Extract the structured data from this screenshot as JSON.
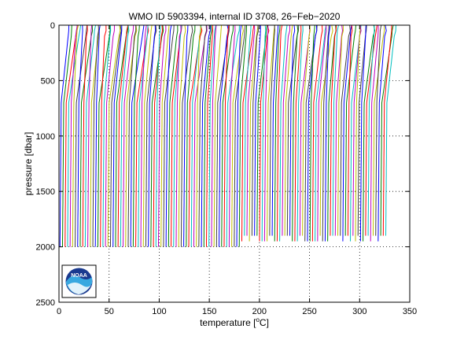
{
  "chart_data": {
    "type": "line",
    "title": "WMO ID 5903394, internal ID 3708, 26−Feb−2020",
    "xlabel_main": "temperature [",
    "xlabel_sup": "o",
    "xlabel_tail": "C]",
    "ylabel": "pressure [dbar]",
    "xlim": [
      0,
      350
    ],
    "ylim": [
      0,
      2500
    ],
    "y_reversed": true,
    "grid": "dotted",
    "xticks": [
      0,
      50,
      100,
      150,
      200,
      250,
      300,
      350
    ],
    "yticks": [
      0,
      500,
      1000,
      1500,
      2000,
      2500
    ],
    "series_colors": [
      "#0000ff",
      "#008000",
      "#ff0000",
      "#00bfbf",
      "#bf00bf",
      "#bfbf00",
      "#404040"
    ],
    "profile_count": 130,
    "profile_offset_start": 0,
    "profile_offset_end": 325,
    "max_pressure": 2000,
    "logo": {
      "text": "NOAA",
      "icon": "noaa-logo-icon"
    }
  }
}
